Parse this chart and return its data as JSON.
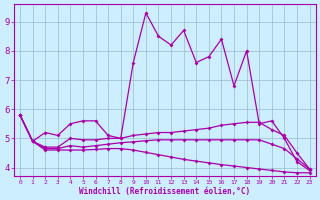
{
  "xlabel": "Windchill (Refroidissement éolien,°C)",
  "bg_color": "#cceeff",
  "line_color": "#aa00aa",
  "grid_color": "#99bbcc",
  "xlim": [
    -0.5,
    23.5
  ],
  "ylim": [
    3.7,
    9.6
  ],
  "xticks": [
    0,
    1,
    2,
    3,
    4,
    5,
    6,
    7,
    8,
    9,
    10,
    11,
    12,
    13,
    14,
    15,
    16,
    17,
    18,
    19,
    20,
    21,
    22,
    23
  ],
  "yticks": [
    4,
    5,
    6,
    7,
    8,
    9
  ],
  "series1_x": [
    0,
    1,
    2,
    3,
    4,
    5,
    6,
    7,
    8,
    9,
    10,
    11,
    12,
    13,
    14,
    15,
    16,
    17,
    18,
    19,
    20,
    21,
    22,
    23
  ],
  "series1_y": [
    5.8,
    4.9,
    5.2,
    5.1,
    5.5,
    5.6,
    5.6,
    5.1,
    5.0,
    7.6,
    9.3,
    8.5,
    8.2,
    8.7,
    7.6,
    7.8,
    8.4,
    6.8,
    8.0,
    5.5,
    5.6,
    5.0,
    4.2,
    3.9
  ],
  "series2_x": [
    0,
    1,
    2,
    3,
    4,
    5,
    6,
    7,
    8,
    9,
    10,
    11,
    12,
    13,
    14,
    15,
    16,
    17,
    18,
    19,
    20,
    21,
    22,
    23
  ],
  "series2_y": [
    5.8,
    4.9,
    4.7,
    4.7,
    5.0,
    4.95,
    4.95,
    5.0,
    5.0,
    5.1,
    5.15,
    5.2,
    5.2,
    5.25,
    5.3,
    5.35,
    5.45,
    5.5,
    5.55,
    5.55,
    5.3,
    5.1,
    4.5,
    3.95
  ],
  "series3_x": [
    0,
    1,
    2,
    3,
    4,
    5,
    6,
    7,
    8,
    9,
    10,
    11,
    12,
    13,
    14,
    15,
    16,
    17,
    18,
    19,
    20,
    21,
    22,
    23
  ],
  "series3_y": [
    5.8,
    4.9,
    4.65,
    4.65,
    4.75,
    4.7,
    4.75,
    4.8,
    4.85,
    4.88,
    4.92,
    4.95,
    4.95,
    4.95,
    4.95,
    4.95,
    4.95,
    4.95,
    4.95,
    4.95,
    4.8,
    4.65,
    4.3,
    3.95
  ],
  "series4_x": [
    0,
    1,
    2,
    3,
    4,
    5,
    6,
    7,
    8,
    9,
    10,
    11,
    12,
    13,
    14,
    15,
    16,
    17,
    18,
    19,
    20,
    21,
    22,
    23
  ],
  "series4_y": [
    5.8,
    4.9,
    4.6,
    4.6,
    4.6,
    4.6,
    4.62,
    4.65,
    4.65,
    4.6,
    4.52,
    4.44,
    4.36,
    4.28,
    4.22,
    4.16,
    4.1,
    4.05,
    4.0,
    3.95,
    3.9,
    3.85,
    3.82,
    3.82
  ]
}
